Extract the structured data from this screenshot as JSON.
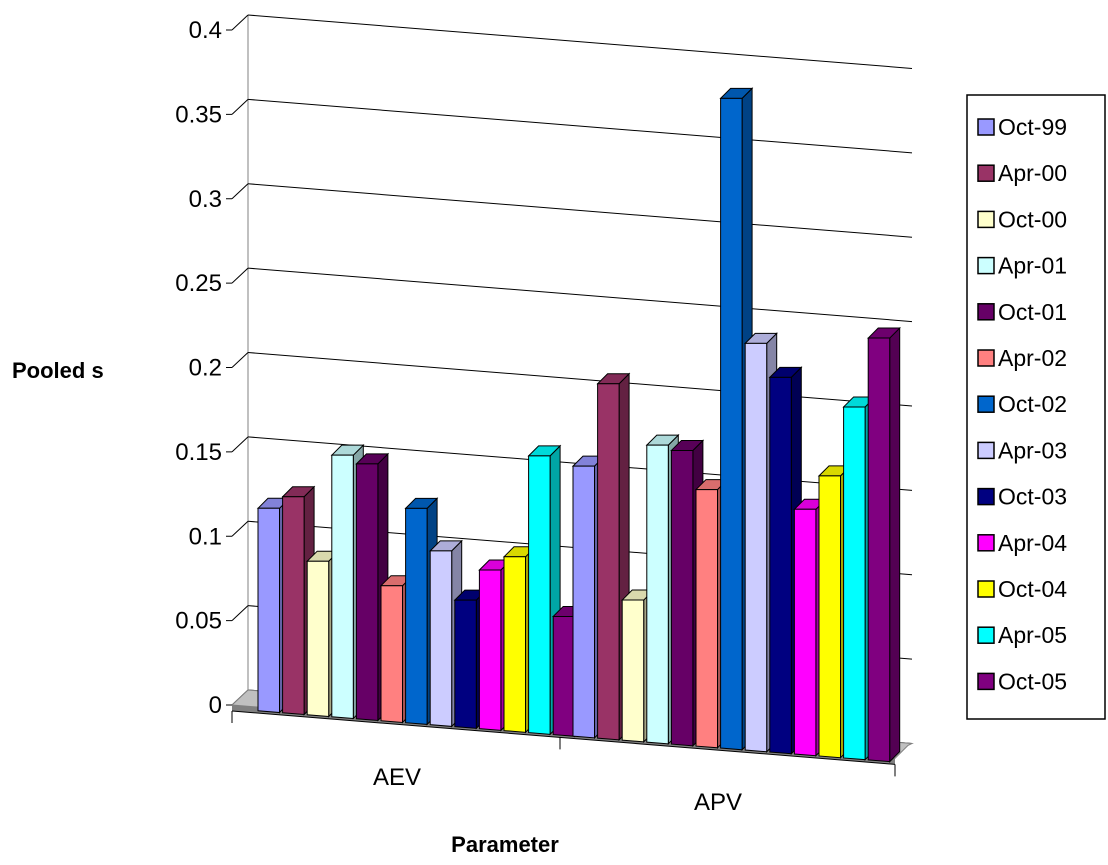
{
  "chart_data": {
    "type": "bar",
    "title": "",
    "xlabel": "Parameter",
    "ylabel": "Pooled s",
    "categories": [
      "AEV",
      "APV"
    ],
    "ylim": [
      0,
      0.4
    ],
    "yticks": [
      "0",
      "0.05",
      "0.1",
      "0.15",
      "0.2",
      "0.25",
      "0.3",
      "0.35",
      "0.4"
    ],
    "grid": true,
    "legend_position": "right",
    "series": [
      {
        "name": "Oct-99",
        "color": "#9999FF",
        "values": [
          0.12,
          0.16
        ]
      },
      {
        "name": "Apr-00",
        "color": "#993366",
        "values": [
          0.128,
          0.21
        ]
      },
      {
        "name": "Oct-00",
        "color": "#FFFFCC",
        "values": [
          0.091,
          0.083
        ]
      },
      {
        "name": "Apr-01",
        "color": "#CCFFFF",
        "values": [
          0.155,
          0.176
        ]
      },
      {
        "name": "Oct-01",
        "color": "#660066",
        "values": [
          0.151,
          0.174
        ]
      },
      {
        "name": "Apr-02",
        "color": "#FF8080",
        "values": [
          0.08,
          0.152
        ]
      },
      {
        "name": "Oct-02",
        "color": "#0066CC",
        "values": [
          0.127,
          0.385
        ]
      },
      {
        "name": "Apr-03",
        "color": "#CCCCFF",
        "values": [
          0.103,
          0.241
        ]
      },
      {
        "name": "Oct-03",
        "color": "#000080",
        "values": [
          0.075,
          0.222
        ]
      },
      {
        "name": "Apr-04",
        "color": "#FF00FF",
        "values": [
          0.094,
          0.145
        ]
      },
      {
        "name": "Oct-04",
        "color": "#FFFF00",
        "values": [
          0.103,
          0.166
        ]
      },
      {
        "name": "Apr-05",
        "color": "#00FFFF",
        "values": [
          0.164,
          0.208
        ]
      },
      {
        "name": "Oct-05",
        "color": "#800080",
        "values": [
          0.07,
          0.25
        ]
      }
    ]
  }
}
